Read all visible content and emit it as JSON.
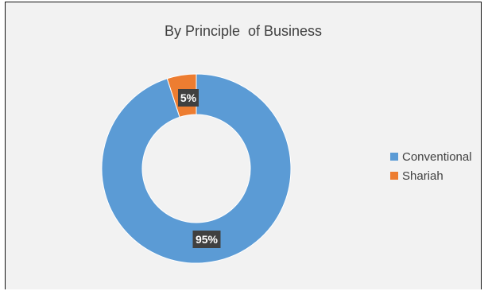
{
  "chart_data": {
    "type": "pie",
    "variant": "donut",
    "title": "By Principle  of Business",
    "series": [
      {
        "name": "Conventional",
        "value": 95,
        "label": "95%",
        "color": "#5b9bd5"
      },
      {
        "name": "Shariah",
        "value": 5,
        "label": "5%",
        "color": "#ed7d31"
      }
    ],
    "legend_position": "right",
    "background": "#f2f2f2",
    "data_label_background": "#404040",
    "data_label_color": "#ffffff"
  }
}
